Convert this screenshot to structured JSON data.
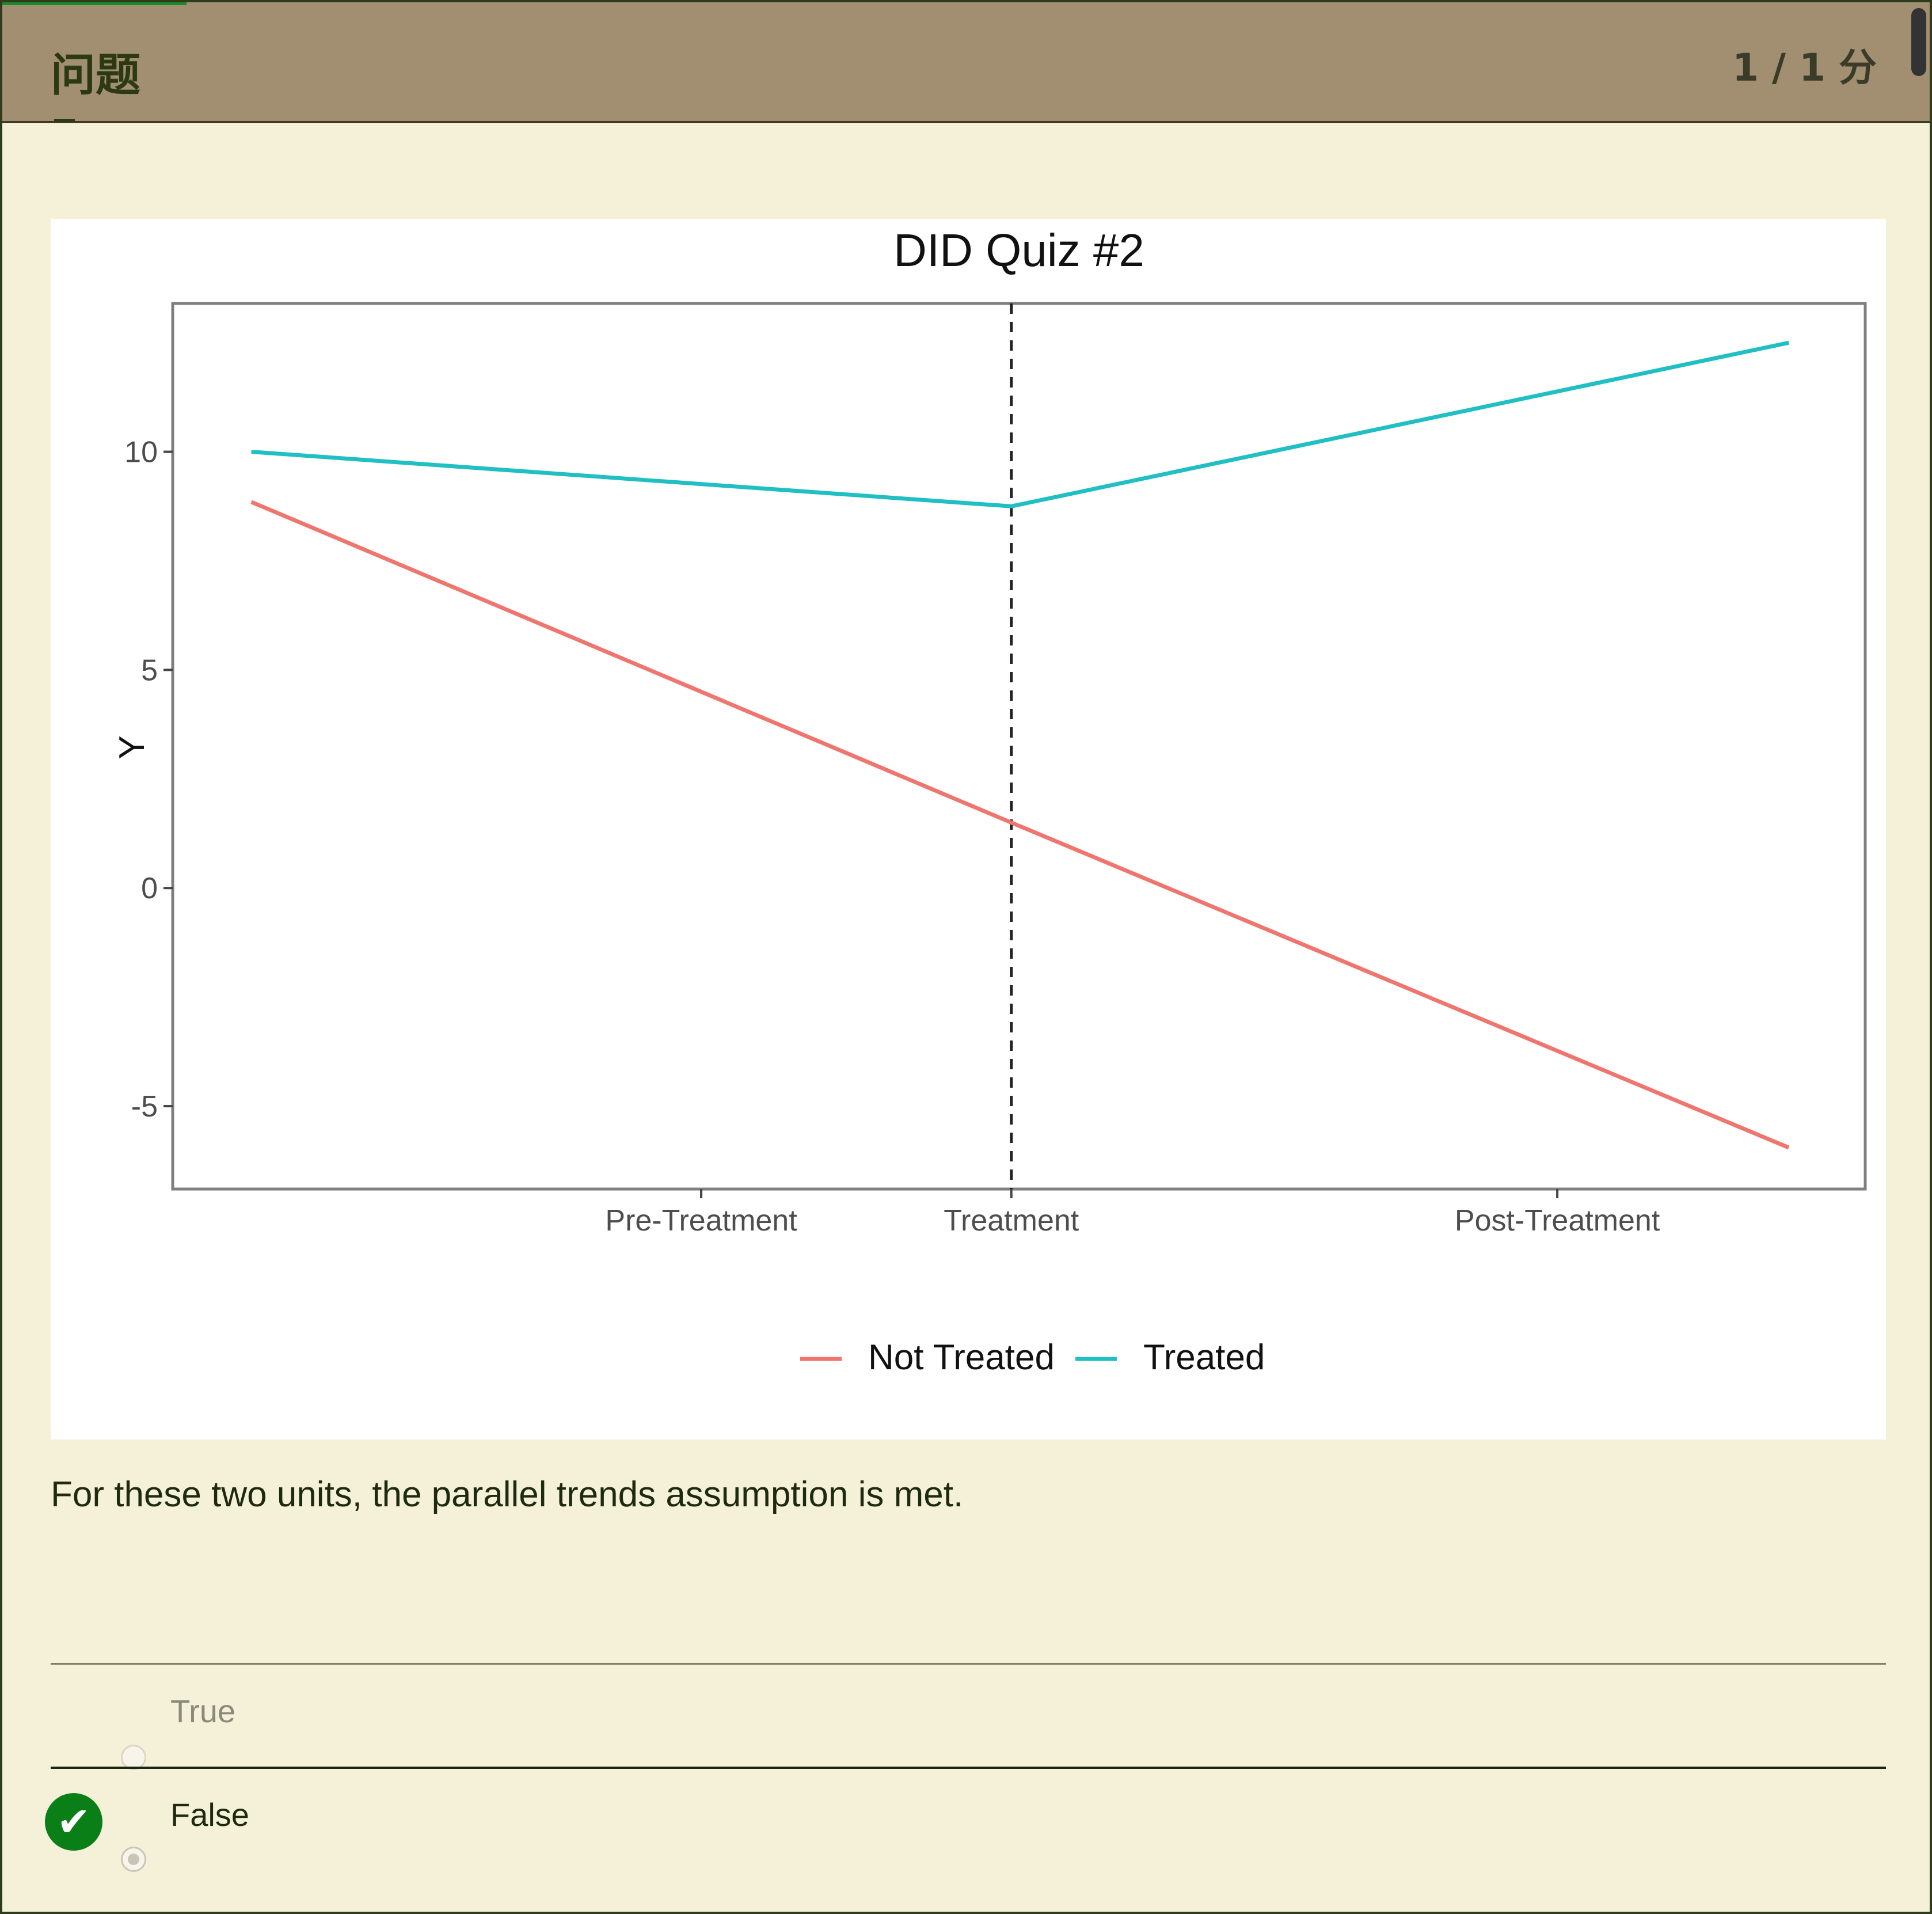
{
  "header": {
    "title": "问题",
    "score": "1 / 1 分"
  },
  "question": {
    "prompt": "For these two units, the parallel trends assumption is met.",
    "options": [
      {
        "label": "True",
        "selected": false
      },
      {
        "label": "False",
        "selected": true,
        "correct": true
      }
    ]
  },
  "colors": {
    "header_bg": "#a28e70",
    "page_bg": "#f5f0d8",
    "not_treated": "#ef766e",
    "treated": "#1fbfc4",
    "correct": "#0a7f18"
  },
  "icons": {
    "correct": "check-icon"
  },
  "chart_data": {
    "type": "line",
    "title": "DID Quiz #2",
    "xlabel": "",
    "ylabel": "Y",
    "x_domain": [
      -1.21,
      2.665
    ],
    "x_points": [
      -1.03,
      0.71,
      2.49
    ],
    "x_ticks": [
      {
        "label": "Pre-Treatment",
        "x": 0
      },
      {
        "label": "Treatment",
        "x": 0.71
      },
      {
        "label": "Post-Treatment",
        "x": 1.96
      }
    ],
    "ylim": [
      -6.9,
      13.4
    ],
    "y_ticks": [
      10,
      5,
      0,
      -5
    ],
    "treatment_line_x": 0.71,
    "series": [
      {
        "name": "Not Treated",
        "values": [
          8.85,
          1.5,
          -5.95
        ]
      },
      {
        "name": "Treated",
        "values": [
          10.0,
          8.75,
          12.5
        ]
      }
    ],
    "grid": false,
    "legend": "bottom"
  }
}
